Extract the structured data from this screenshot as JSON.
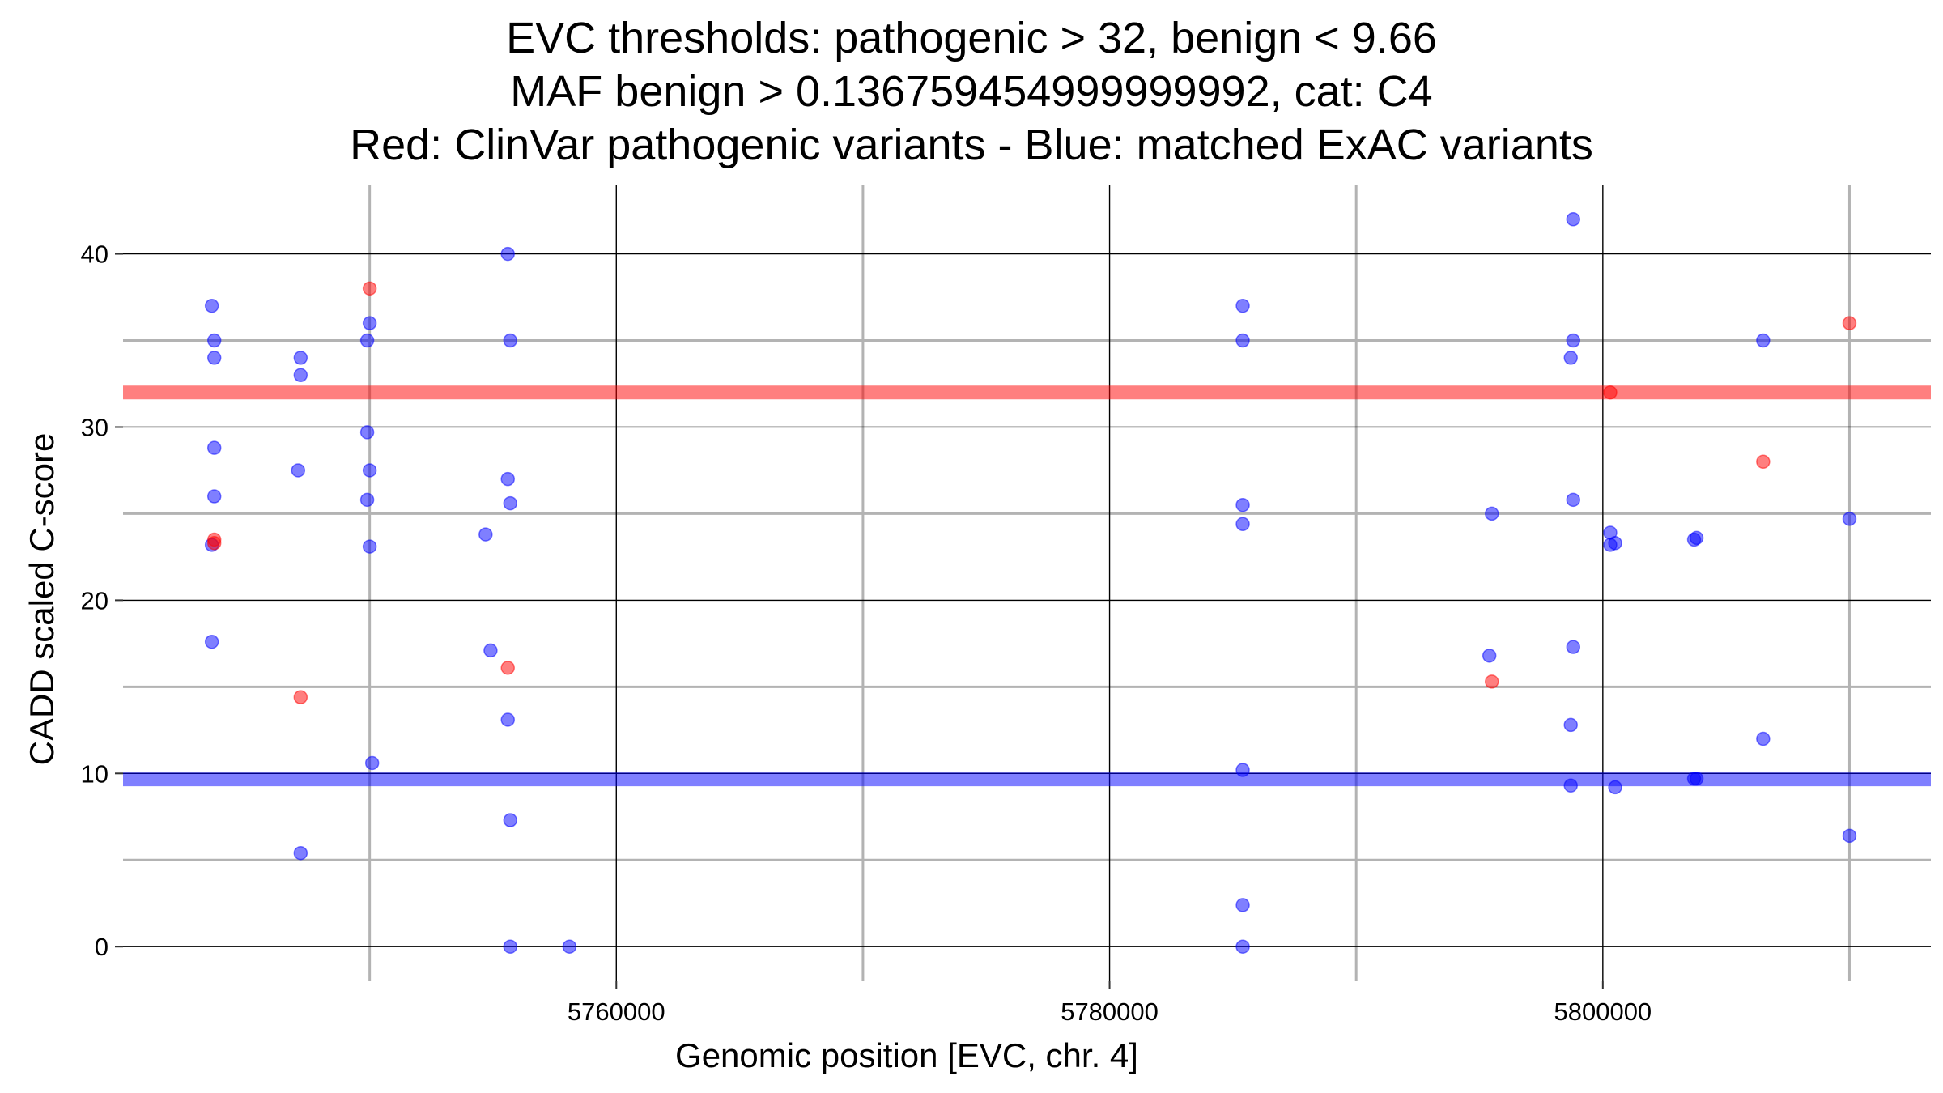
{
  "chart_data": {
    "type": "scatter",
    "title_lines": [
      "EVC thresholds: pathogenic > 32, benign < 9.66",
      "MAF benign > 0.136759454999999992, cat: C4",
      "Red: ClinVar pathogenic variants - Blue: matched ExAC variants"
    ],
    "xlabel": "Genomic position [EVC, chr. 4]",
    "ylabel": "CADD scaled C-score",
    "xlim": [
      5740000,
      5813300
    ],
    "ylim": [
      -2,
      44
    ],
    "x_major_ticks": [
      5760000,
      5780000,
      5800000
    ],
    "x_tick_labels": [
      "5760000",
      "5780000",
      "5800000"
    ],
    "x_minor_gridlines": [
      5750000,
      5770000,
      5790000,
      5810000
    ],
    "y_major_ticks": [
      0,
      10,
      20,
      30,
      40
    ],
    "y_tick_labels": [
      "0",
      "10",
      "20",
      "30",
      "40"
    ],
    "y_minor_gridlines": [
      5,
      15,
      25,
      35
    ],
    "grid": true,
    "thresholds": [
      {
        "name": "pathogenic",
        "value": 32,
        "color": "#ff0000"
      },
      {
        "name": "benign",
        "value": 9.66,
        "color": "#0000ff"
      }
    ],
    "series": [
      {
        "name": "ClinVar pathogenic variants",
        "color": "#ff0000",
        "points": [
          {
            "x": 5743700,
            "y": 23.5
          },
          {
            "x": 5743700,
            "y": 23.3
          },
          {
            "x": 5747200,
            "y": 14.4
          },
          {
            "x": 5750000,
            "y": 38
          },
          {
            "x": 5755600,
            "y": 16.1
          },
          {
            "x": 5795500,
            "y": 15.3
          },
          {
            "x": 5800300,
            "y": 32
          },
          {
            "x": 5806500,
            "y": 28
          },
          {
            "x": 5810000,
            "y": 36
          }
        ]
      },
      {
        "name": "matched ExAC variants",
        "color": "#0000ff",
        "points": [
          {
            "x": 5743600,
            "y": 37
          },
          {
            "x": 5743700,
            "y": 35
          },
          {
            "x": 5743700,
            "y": 34
          },
          {
            "x": 5743700,
            "y": 28.8
          },
          {
            "x": 5743700,
            "y": 26
          },
          {
            "x": 5743600,
            "y": 23.2
          },
          {
            "x": 5743600,
            "y": 17.6
          },
          {
            "x": 5747200,
            "y": 34
          },
          {
            "x": 5747200,
            "y": 33
          },
          {
            "x": 5747100,
            "y": 27.5
          },
          {
            "x": 5747200,
            "y": 5.4
          },
          {
            "x": 5750000,
            "y": 36
          },
          {
            "x": 5749900,
            "y": 35
          },
          {
            "x": 5749900,
            "y": 29.7
          },
          {
            "x": 5750000,
            "y": 27.5
          },
          {
            "x": 5749900,
            "y": 25.8
          },
          {
            "x": 5750000,
            "y": 23.1
          },
          {
            "x": 5750100,
            "y": 10.6
          },
          {
            "x": 5755600,
            "y": 40
          },
          {
            "x": 5755700,
            "y": 35
          },
          {
            "x": 5755600,
            "y": 27
          },
          {
            "x": 5755700,
            "y": 25.6
          },
          {
            "x": 5754700,
            "y": 23.8
          },
          {
            "x": 5754900,
            "y": 17.1
          },
          {
            "x": 5755600,
            "y": 13.1
          },
          {
            "x": 5755700,
            "y": 7.3
          },
          {
            "x": 5755700,
            "y": 0
          },
          {
            "x": 5758100,
            "y": 0
          },
          {
            "x": 5785400,
            "y": 37
          },
          {
            "x": 5785400,
            "y": 35
          },
          {
            "x": 5785400,
            "y": 25.5
          },
          {
            "x": 5785400,
            "y": 24.4
          },
          {
            "x": 5785400,
            "y": 10.2
          },
          {
            "x": 5785400,
            "y": 2.4
          },
          {
            "x": 5785400,
            "y": 0
          },
          {
            "x": 5795500,
            "y": 25
          },
          {
            "x": 5795400,
            "y": 16.8
          },
          {
            "x": 5798800,
            "y": 42
          },
          {
            "x": 5798800,
            "y": 35
          },
          {
            "x": 5798700,
            "y": 34
          },
          {
            "x": 5798800,
            "y": 25.8
          },
          {
            "x": 5798800,
            "y": 17.3
          },
          {
            "x": 5798700,
            "y": 12.8
          },
          {
            "x": 5798700,
            "y": 9.3
          },
          {
            "x": 5800300,
            "y": 23.9
          },
          {
            "x": 5800300,
            "y": 23.2
          },
          {
            "x": 5800500,
            "y": 23.3
          },
          {
            "x": 5800500,
            "y": 9.2
          },
          {
            "x": 5803700,
            "y": 23.5
          },
          {
            "x": 5803800,
            "y": 23.6
          },
          {
            "x": 5803700,
            "y": 9.7
          },
          {
            "x": 5803800,
            "y": 9.7
          },
          {
            "x": 5806500,
            "y": 35
          },
          {
            "x": 5806500,
            "y": 12
          },
          {
            "x": 5810000,
            "y": 24.7
          },
          {
            "x": 5810000,
            "y": 6.4
          }
        ]
      }
    ]
  }
}
